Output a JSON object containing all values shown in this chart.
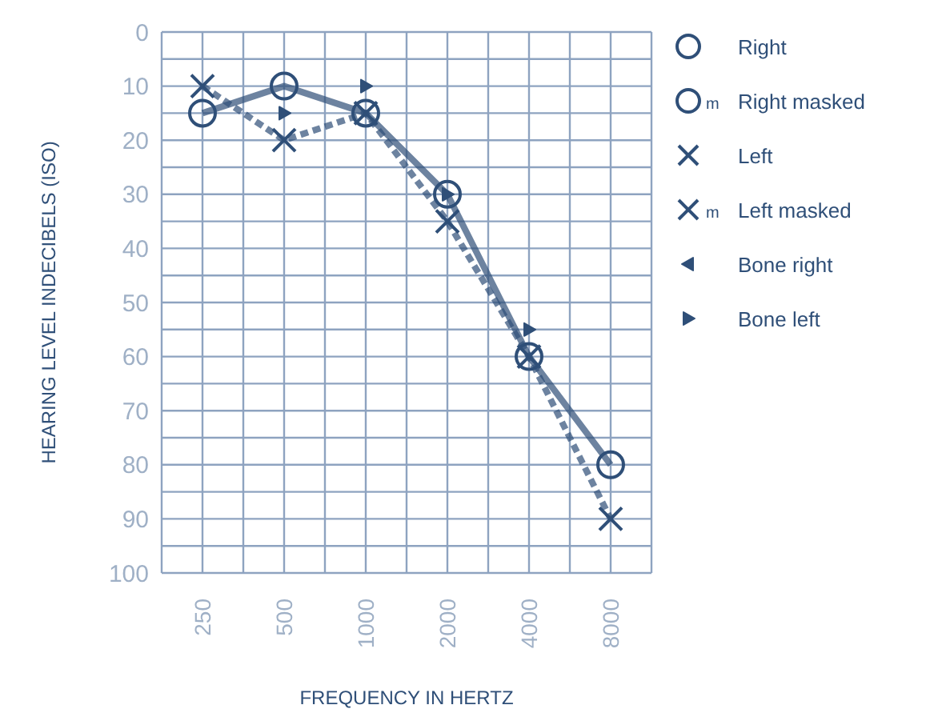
{
  "chart_data": {
    "type": "line",
    "xlabel": "FREQUENCY IN HERTZ",
    "ylabel": "HEARING LEVEL INDECIBELS (ISO)",
    "categories": [
      "250",
      "500",
      "1000",
      "2000",
      "4000",
      "8000"
    ],
    "ylim": [
      100,
      0
    ],
    "yticks": [
      0,
      {
        "value": 5,
        "label": null
      },
      10,
      {
        "value": 15,
        "label": null
      },
      20,
      {
        "value": 25,
        "label": null
      },
      30,
      {
        "value": 35,
        "label": null
      },
      40,
      {
        "value": 45,
        "label": null
      },
      50,
      {
        "value": 55,
        "label": null
      },
      60,
      {
        "value": 65,
        "label": null
      },
      70,
      {
        "value": 75,
        "label": null
      },
      80,
      {
        "value": 85,
        "label": null
      },
      90,
      {
        "value": 95,
        "label": null
      },
      100
    ],
    "grid": true,
    "legend": "top right",
    "annotations": [
      "m",
      "m"
    ],
    "series": [
      {
        "name": "Right",
        "color": "#2f4f78",
        "marker": "circle",
        "line_style": "solid",
        "values": [
          15,
          10,
          15,
          30,
          60,
          80
        ]
      },
      {
        "name": "Right masked",
        "color": "#2f4f78",
        "marker": "circle",
        "line_style": "solid",
        "values": [
          null,
          null,
          null,
          null,
          null,
          null
        ]
      },
      {
        "name": "Left",
        "color": "#2f4f78",
        "marker": "cross",
        "line_style": "dashed",
        "values": [
          10,
          20,
          15,
          35,
          60,
          90
        ]
      },
      {
        "name": "Left masked",
        "color": "#2f4f78",
        "marker": "cross",
        "line_style": "dashed",
        "values": [
          null,
          null,
          null,
          null,
          null,
          null
        ]
      },
      {
        "name": "Bone right",
        "type": "scatter",
        "color": "#2f4f78",
        "marker": "triangle",
        "values": [
          null,
          null,
          null,
          null,
          null,
          null
        ]
      },
      {
        "name": "Bone left",
        "type": "scatter",
        "color": "#2f4f78",
        "marker": "triangle",
        "values": [
          null,
          15,
          10,
          30,
          55,
          null
        ]
      }
    ]
  }
}
